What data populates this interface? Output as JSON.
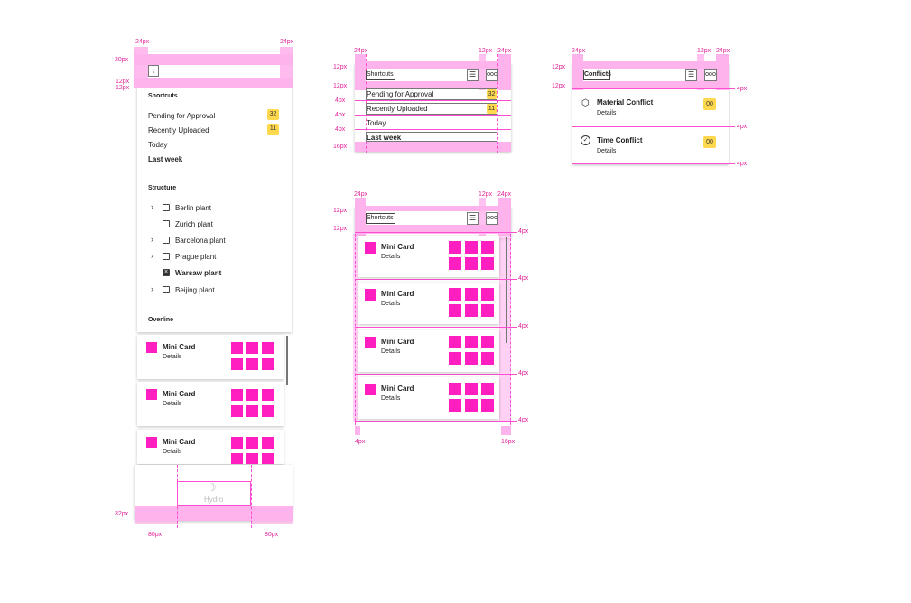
{
  "measure": {
    "p24": "24px",
    "p20": "20px",
    "p12": "12px",
    "p4": "4px",
    "p16": "16px",
    "p32": "32px",
    "p80": "80px"
  },
  "sidebar": {
    "back_icon": "chevron-left-icon",
    "shortcuts_heading": "Shortcuts",
    "shortcuts": [
      {
        "label": "Pending for Approval",
        "badge": "32"
      },
      {
        "label": "Recently Uploaded",
        "badge": "11"
      },
      {
        "label": "Today",
        "badge": ""
      },
      {
        "label": "Last week",
        "badge": ""
      }
    ],
    "structure_heading": "Structure",
    "structure": [
      {
        "label": "Berlin plant",
        "expandable": true,
        "checked": false
      },
      {
        "label": "Zurich plant",
        "expandable": false,
        "checked": false
      },
      {
        "label": "Barcelona plant",
        "expandable": true,
        "checked": false
      },
      {
        "label": "Prague plant",
        "expandable": true,
        "checked": false
      },
      {
        "label": "Warsaw plant",
        "expandable": false,
        "checked": true
      },
      {
        "label": "Beijing plant",
        "expandable": true,
        "checked": false
      }
    ],
    "overline_heading": "Overline",
    "logo_text": "Hydro"
  },
  "mini_card": {
    "title": "Mini Card",
    "subtitle": "Details"
  },
  "shortcuts_spec": {
    "title": "Shortcuts",
    "items": [
      {
        "label": "Pending for Approval",
        "badge": "32"
      },
      {
        "label": "Recently Uploaded",
        "badge": "11"
      },
      {
        "label": "Today",
        "badge": ""
      },
      {
        "label": "Last week",
        "badge": ""
      }
    ]
  },
  "conflicts_spec": {
    "title": "Conflicts",
    "items": [
      {
        "title": "Material Conflict",
        "subtitle": "Details",
        "badge": "00",
        "icon": "cube-icon"
      },
      {
        "title": "Time Conflict",
        "subtitle": "Details",
        "badge": "00",
        "icon": "check-circle-icon"
      }
    ]
  },
  "cards_spec": {
    "title": "Shortcuts"
  },
  "colors": {
    "accent": "#ff1fc0",
    "badge": "#ffd84d",
    "spacing_overlay": "#ffb3ec"
  }
}
